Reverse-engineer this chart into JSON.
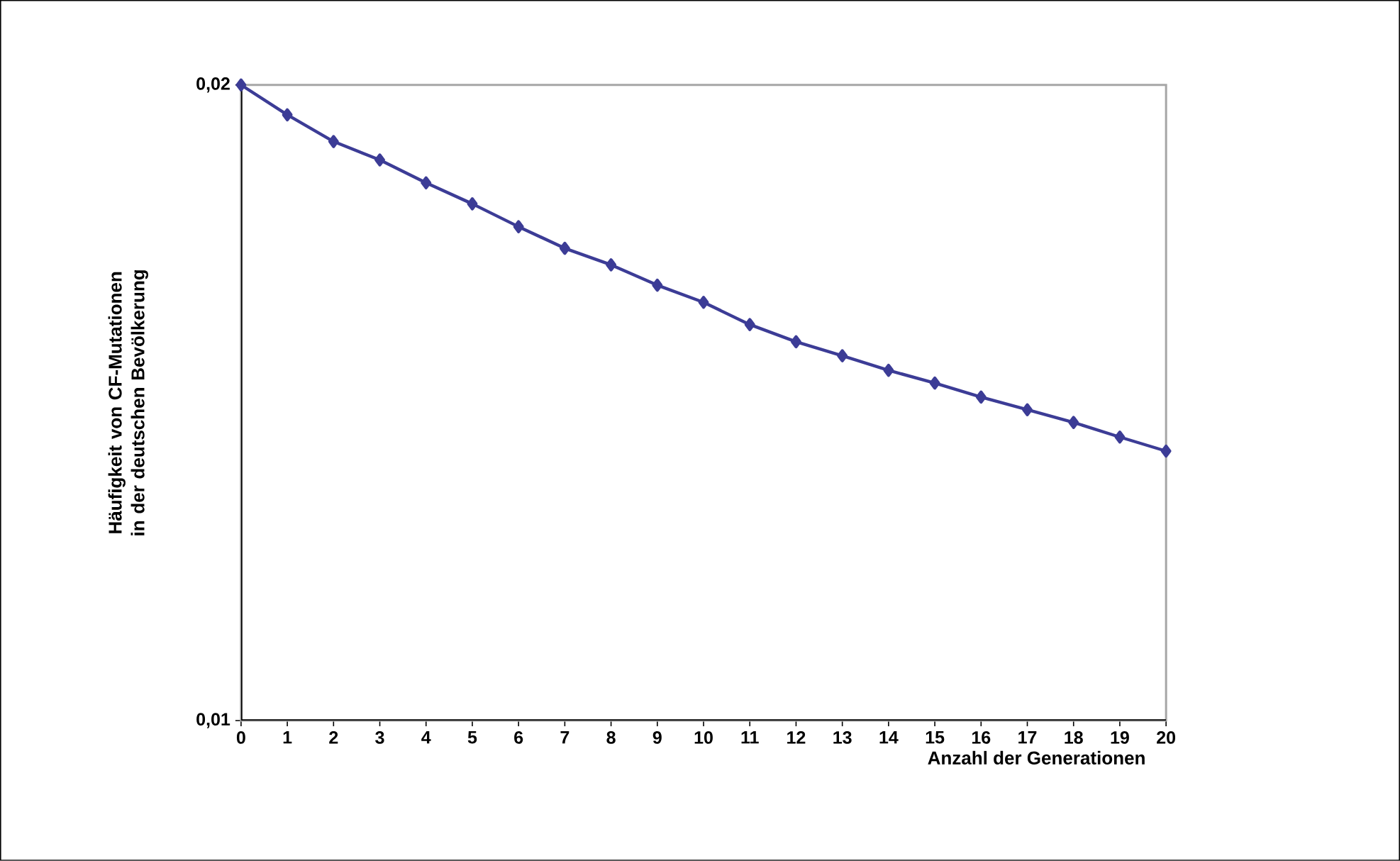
{
  "chart_data": {
    "type": "line",
    "xlabel": "Anzahl der Generationen",
    "ylabel": "Häufigkeit von CF-Mutationen in der deutschen Bevölkerung",
    "x": [
      0,
      1,
      2,
      3,
      4,
      5,
      6,
      7,
      8,
      9,
      10,
      11,
      12,
      13,
      14,
      15,
      16,
      17,
      18,
      19,
      20
    ],
    "series": [
      {
        "color": "#3c3c96",
        "values": [
          0.02,
          0.01953,
          0.01911,
          0.01882,
          0.01846,
          0.01813,
          0.01777,
          0.01743,
          0.01717,
          0.01685,
          0.01658,
          0.01623,
          0.01596,
          0.01574,
          0.01551,
          0.01531,
          0.01509,
          0.01489,
          0.01469,
          0.01446,
          0.01424
        ]
      }
    ],
    "xlim": [
      0,
      20
    ],
    "ylim": [
      0.01,
      0.02
    ],
    "xticks": [
      0,
      1,
      2,
      3,
      4,
      5,
      6,
      7,
      8,
      9,
      10,
      11,
      12,
      13,
      14,
      15,
      16,
      17,
      18,
      19,
      20
    ],
    "yticks": [
      {
        "value": 0.01,
        "label": "0,01"
      },
      {
        "value": 0.02,
        "label": "0,02"
      }
    ],
    "marker": "diamond",
    "line_style": "solid"
  }
}
